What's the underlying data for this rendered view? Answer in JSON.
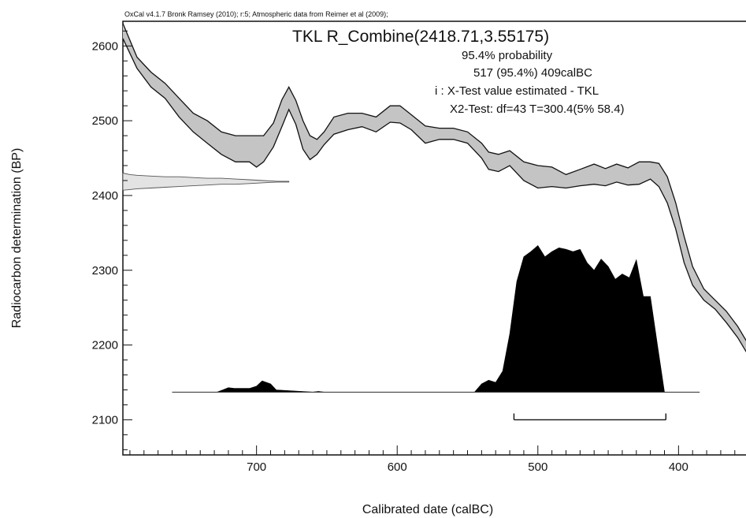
{
  "chart_data": {
    "type": "area",
    "credit": "OxCal v4.1.7 Bronk Ramsey (2010); r:5; Atmospheric data from Reimer et al (2009);",
    "title": "TKL R_Combine(2418.71,3.55175)",
    "annotations": [
      "95.4% probability",
      "517 (95.4%) 409calBC",
      "i : X-Test value estimated - TKL",
      "X2-Test: df=43 T=300.4(5% 58.4)"
    ],
    "xlabel": "Calibrated date (calBC)",
    "ylabel": "Radiocarbon determination (BP)",
    "xlim": [
      795,
      347
    ],
    "ylim": [
      2053,
      2633
    ],
    "x_ticks": [
      700,
      600,
      500,
      400
    ],
    "y_ticks": [
      2100,
      2200,
      2300,
      2400,
      2500,
      2600
    ],
    "calibration_curve": {
      "x": [
        795,
        785,
        775,
        765,
        755,
        745,
        735,
        725,
        715,
        705,
        700,
        695,
        688,
        682,
        677,
        672,
        667,
        662,
        657,
        652,
        645,
        635,
        625,
        615,
        605,
        598,
        590,
        580,
        570,
        560,
        550,
        540,
        535,
        528,
        520,
        510,
        500,
        490,
        480,
        470,
        460,
        452,
        444,
        436,
        428,
        420,
        414,
        408,
        402,
        396,
        390,
        382,
        374,
        366,
        358,
        350,
        347
      ],
      "upper": [
        2630,
        2585,
        2565,
        2550,
        2530,
        2510,
        2500,
        2485,
        2480,
        2480,
        2480,
        2480,
        2497,
        2528,
        2545,
        2527,
        2500,
        2480,
        2475,
        2485,
        2505,
        2510,
        2510,
        2505,
        2520,
        2520,
        2508,
        2493,
        2490,
        2490,
        2485,
        2470,
        2458,
        2455,
        2460,
        2445,
        2440,
        2438,
        2428,
        2435,
        2442,
        2436,
        2442,
        2437,
        2445,
        2445,
        2443,
        2425,
        2390,
        2345,
        2305,
        2275,
        2260,
        2245,
        2225,
        2200,
        2190
      ],
      "lower": [
        2610,
        2570,
        2545,
        2530,
        2505,
        2485,
        2470,
        2455,
        2445,
        2445,
        2438,
        2445,
        2465,
        2492,
        2515,
        2495,
        2462,
        2448,
        2455,
        2468,
        2482,
        2488,
        2492,
        2485,
        2498,
        2497,
        2488,
        2470,
        2475,
        2475,
        2470,
        2450,
        2435,
        2432,
        2440,
        2420,
        2410,
        2412,
        2410,
        2413,
        2415,
        2413,
        2418,
        2414,
        2415,
        2422,
        2412,
        2390,
        2355,
        2310,
        2280,
        2260,
        2248,
        2230,
        2210,
        2185,
        2180
      ]
    },
    "likelihood": {
      "label": "R_Combine(2418.71,3.55175)",
      "mean": 2418.71,
      "sd": 3.55175,
      "x": [
        795,
        790,
        785,
        775,
        765,
        755,
        745,
        735,
        725,
        715,
        705,
        695,
        685,
        677
      ],
      "upper": [
        2430,
        2428,
        2427,
        2426,
        2425,
        2425,
        2424,
        2423,
        2423,
        2422,
        2421,
        2420,
        2419,
        2419
      ],
      "lower": [
        2407,
        2408,
        2409,
        2410,
        2411,
        2412,
        2413,
        2414,
        2415,
        2415,
        2416,
        2417,
        2418,
        2418
      ]
    },
    "posterior": {
      "baseline": 2137,
      "x": [
        760,
        728,
        724,
        720,
        716,
        710,
        705,
        700,
        696,
        690,
        686,
        660,
        656,
        652,
        545,
        540,
        535,
        530,
        525,
        520,
        515,
        510,
        505,
        500,
        495,
        490,
        485,
        480,
        475,
        470,
        465,
        460,
        455,
        450,
        445,
        440,
        435,
        430,
        425,
        420,
        415,
        410,
        406,
        385
      ],
      "y": [
        2137,
        2137,
        2140,
        2143,
        2142,
        2142,
        2142,
        2145,
        2152,
        2148,
        2140,
        2137,
        2138,
        2137,
        2137,
        2148,
        2153,
        2150,
        2165,
        2215,
        2285,
        2318,
        2325,
        2333,
        2318,
        2325,
        2330,
        2328,
        2325,
        2328,
        2310,
        2300,
        2315,
        2305,
        2288,
        2295,
        2290,
        2314,
        2265,
        2265,
        2200,
        2137,
        2137,
        2137
      ]
    },
    "range_95_4": [
      517,
      409
    ],
    "range_bar_y": 2100,
    "grid": false
  }
}
